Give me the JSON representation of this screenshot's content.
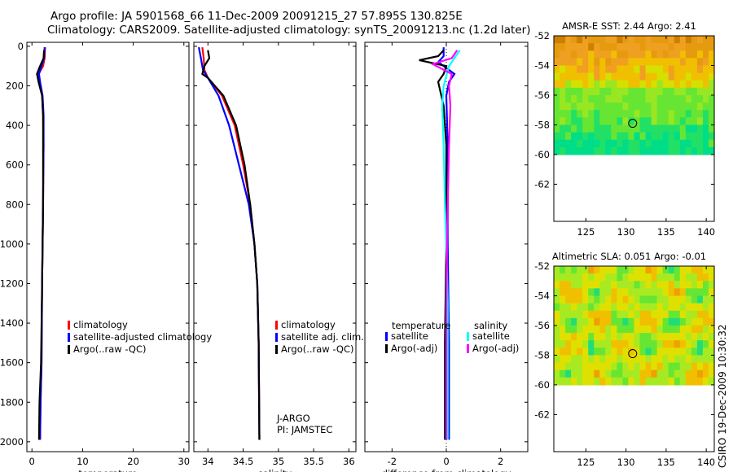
{
  "header": {
    "line1": "Argo profile: JA 5901568_66 11-Dec-2009 20091215_27 57.895S 130.825E",
    "line2": "Climatology: CARS2009. Satellite-adjusted climatology: synTS_20091213.nc (1.2d later)"
  },
  "stamp": "CSIRO 19-Dec-2009 10:30:32",
  "colors": {
    "climatology": "#ff0000",
    "satellite": "#0000ff",
    "argo": "#000000",
    "sal_satellite": "#00ffff",
    "sal_argo": "#ff00ff"
  },
  "chart_data": [
    {
      "type": "line",
      "name": "temperature-profile",
      "xlabel": "temperature",
      "ylabel": "",
      "xlim": [
        -1,
        31
      ],
      "ylim": [
        2050,
        -20
      ],
      "x_ticks": [
        0,
        10,
        20,
        30
      ],
      "y_ticks": [
        0,
        200,
        400,
        600,
        800,
        1000,
        1200,
        1400,
        1600,
        1800,
        2000
      ],
      "legend": [
        "climatology",
        "satellite-adjusted climatology",
        "Argo(..raw -QC)"
      ],
      "series": [
        {
          "name": "climatology",
          "color": "#ff0000",
          "points": [
            [
              2.6,
              5
            ],
            [
              2.5,
              60
            ],
            [
              2.2,
              100
            ],
            [
              1.3,
              140
            ],
            [
              1.5,
              180
            ],
            [
              2.0,
              250
            ],
            [
              2.2,
              350
            ],
            [
              2.3,
              500
            ],
            [
              2.2,
              800
            ],
            [
              2.0,
              1200
            ],
            [
              1.9,
              1600
            ],
            [
              1.7,
              1800
            ],
            [
              1.6,
              1990
            ]
          ]
        },
        {
          "name": "satellite-adjusted climatology",
          "color": "#0000ff",
          "points": [
            [
              2.5,
              5
            ],
            [
              2.4,
              60
            ],
            [
              1.9,
              100
            ],
            [
              1.4,
              140
            ],
            [
              1.6,
              180
            ],
            [
              2.1,
              250
            ],
            [
              2.3,
              350
            ],
            [
              2.3,
              500
            ],
            [
              2.2,
              800
            ],
            [
              2.0,
              1200
            ],
            [
              1.9,
              1600
            ],
            [
              1.7,
              1800
            ],
            [
              1.6,
              1990
            ]
          ]
        },
        {
          "name": "Argo(..raw -QC)",
          "color": "#000000",
          "points": [
            [
              2.4,
              20
            ],
            [
              2.3,
              60
            ],
            [
              1.6,
              100
            ],
            [
              1.0,
              140
            ],
            [
              1.3,
              180
            ],
            [
              2.0,
              250
            ],
            [
              2.2,
              350
            ],
            [
              2.2,
              500
            ],
            [
              2.2,
              800
            ],
            [
              2.0,
              1200
            ],
            [
              1.8,
              1600
            ],
            [
              1.5,
              1800
            ],
            [
              1.4,
              1990
            ]
          ]
        }
      ]
    },
    {
      "type": "line",
      "name": "salinity-profile",
      "xlabel": "salinity",
      "xlim": [
        33.8,
        36.1
      ],
      "ylim": [
        2050,
        -20
      ],
      "x_ticks": [
        34,
        34.5,
        35,
        35.5,
        36
      ],
      "legend": [
        "climatology",
        "satellite adj. clim.",
        "Argo(..raw -QC)"
      ],
      "annotation": [
        "J-ARGO",
        "PI: JAMSTEC"
      ],
      "series": [
        {
          "name": "climatology",
          "color": "#ff0000",
          "points": [
            [
              33.92,
              5
            ],
            [
              33.94,
              60
            ],
            [
              33.95,
              120
            ],
            [
              34.0,
              160
            ],
            [
              34.2,
              250
            ],
            [
              34.38,
              400
            ],
            [
              34.5,
              600
            ],
            [
              34.6,
              800
            ],
            [
              34.66,
              1000
            ],
            [
              34.7,
              1200
            ],
            [
              34.72,
              1500
            ],
            [
              34.73,
              1990
            ]
          ]
        },
        {
          "name": "satellite adj. clim.",
          "color": "#0000ff",
          "points": [
            [
              33.87,
              5
            ],
            [
              33.9,
              60
            ],
            [
              33.93,
              120
            ],
            [
              34.0,
              160
            ],
            [
              34.15,
              250
            ],
            [
              34.3,
              400
            ],
            [
              34.44,
              600
            ],
            [
              34.58,
              800
            ],
            [
              34.66,
              1000
            ],
            [
              34.7,
              1200
            ],
            [
              34.72,
              1500
            ],
            [
              34.73,
              1990
            ]
          ]
        },
        {
          "name": "Argo(..raw -QC)",
          "color": "#000000",
          "points": [
            [
              34.0,
              20
            ],
            [
              34.02,
              60
            ],
            [
              33.95,
              100
            ],
            [
              33.92,
              140
            ],
            [
              34.0,
              160
            ],
            [
              34.22,
              250
            ],
            [
              34.4,
              400
            ],
            [
              34.52,
              600
            ],
            [
              34.6,
              800
            ],
            [
              34.66,
              1000
            ],
            [
              34.7,
              1200
            ],
            [
              34.72,
              1500
            ],
            [
              34.73,
              1990
            ]
          ]
        }
      ]
    },
    {
      "type": "line",
      "name": "difference-profile",
      "xlabel": "difference from climatology",
      "xlim": [
        -3,
        3
      ],
      "ylim": [
        2050,
        -20
      ],
      "x_ticks": [
        -2,
        0,
        2
      ],
      "legend_temperature": {
        "title": "temperature",
        "items": [
          "satellite",
          "Argo(-adj)"
        ]
      },
      "legend_salinity": {
        "title": "salinity",
        "items": [
          "satellite",
          "Argo(-adj)"
        ]
      },
      "series": [
        {
          "name": "temperature satellite",
          "color": "#0000ff",
          "points": [
            [
              -0.1,
              5
            ],
            [
              -0.1,
              50
            ],
            [
              -0.3,
              80
            ],
            [
              0.3,
              140
            ],
            [
              0.1,
              180
            ],
            [
              0.0,
              250
            ],
            [
              0.05,
              500
            ],
            [
              0.05,
              1000
            ],
            [
              0.1,
              1500
            ],
            [
              0.1,
              1990
            ]
          ]
        },
        {
          "name": "temperature Argo(-adj)",
          "color": "#000000",
          "points": [
            [
              -0.1,
              20
            ],
            [
              -0.3,
              50
            ],
            [
              -1.0,
              70
            ],
            [
              0.0,
              100
            ],
            [
              -0.1,
              140
            ],
            [
              -0.3,
              180
            ],
            [
              -0.1,
              300
            ],
            [
              0.0,
              500
            ],
            [
              0.0,
              1000
            ],
            [
              -0.05,
              1500
            ],
            [
              -0.05,
              1990
            ]
          ]
        },
        {
          "name": "salinity satellite",
          "color": "#00ffff",
          "points": [
            [
              0.5,
              20
            ],
            [
              0.3,
              60
            ],
            [
              0.1,
              100
            ],
            [
              -0.1,
              200
            ],
            [
              -0.15,
              300
            ],
            [
              -0.1,
              500
            ],
            [
              -0.05,
              800
            ],
            [
              0.0,
              1000
            ],
            [
              0.05,
              1300
            ],
            [
              0.05,
              1990
            ]
          ]
        },
        {
          "name": "salinity Argo(-adj)",
          "color": "#ff00ff",
          "points": [
            [
              0.4,
              20
            ],
            [
              0.2,
              60
            ],
            [
              -0.5,
              90
            ],
            [
              0.2,
              140
            ],
            [
              0.1,
              200
            ],
            [
              0.15,
              300
            ],
            [
              0.1,
              500
            ],
            [
              0.05,
              800
            ],
            [
              0.03,
              1000
            ],
            [
              0.0,
              1300
            ],
            [
              0.0,
              1990
            ]
          ]
        }
      ]
    },
    {
      "type": "heatmap",
      "name": "amsr-sst-map",
      "title": "AMSR-E SST: 2.44 Argo: 2.41",
      "xlim": [
        121,
        141
      ],
      "ylim": [
        -64.5,
        -52
      ],
      "x_ticks": [
        125,
        130,
        135,
        140
      ],
      "y_ticks": [
        -52,
        -54,
        -56,
        -58,
        -60,
        -62
      ],
      "data_ylim": [
        -60,
        -52
      ],
      "marker": {
        "lon": 130.825,
        "lat": -57.895
      }
    },
    {
      "type": "heatmap",
      "name": "altimetric-sla-map",
      "title": "Altimetric SLA: 0.051 Argo: -0.01",
      "xlim": [
        121,
        141
      ],
      "ylim": [
        -64.5,
        -52
      ],
      "x_ticks": [
        125,
        130,
        135,
        140
      ],
      "y_ticks": [
        -52,
        -54,
        -56,
        -58,
        -60,
        -62
      ],
      "data_ylim": [
        -60,
        -52
      ],
      "marker": {
        "lon": 130.825,
        "lat": -57.895
      }
    }
  ]
}
